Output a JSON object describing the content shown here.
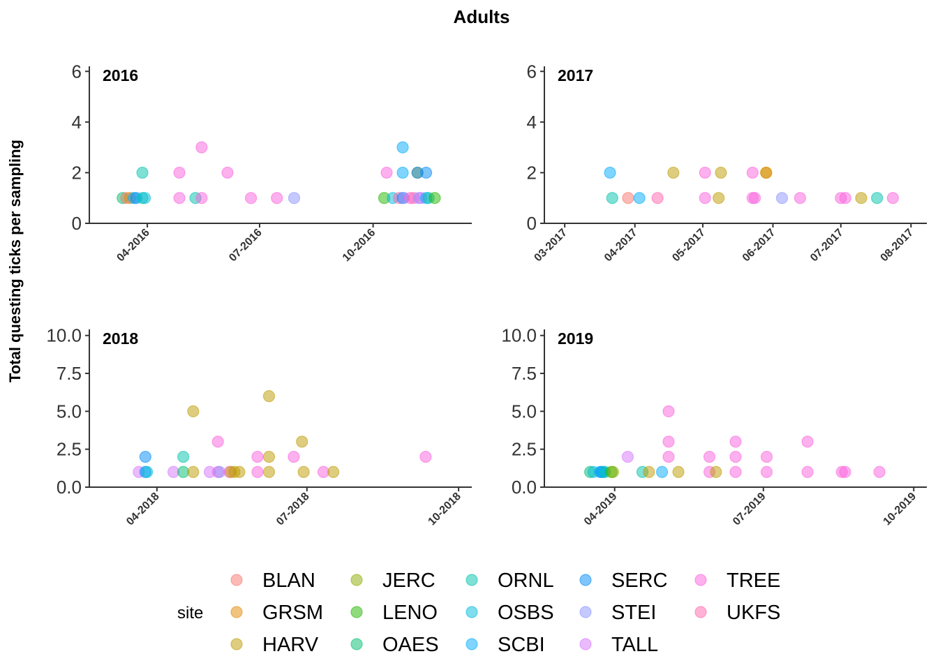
{
  "chart_data": {
    "type": "scatter",
    "title": "Adults",
    "ylabel": "Total questing ticks per sampling",
    "xlabel": "",
    "legend": {
      "title": "site",
      "position": "bottom",
      "entries": [
        {
          "name": "BLAN",
          "color": "#F8766D"
        },
        {
          "name": "GRSM",
          "color": "#E18A00"
        },
        {
          "name": "HARV",
          "color": "#BE9C00"
        },
        {
          "name": "JERC",
          "color": "#8CAB00"
        },
        {
          "name": "LENO",
          "color": "#24B700"
        },
        {
          "name": "OAES",
          "color": "#00BE70"
        },
        {
          "name": "ORNL",
          "color": "#00C1AB"
        },
        {
          "name": "OSBS",
          "color": "#00BBDA"
        },
        {
          "name": "SCBI",
          "color": "#00ACFC"
        },
        {
          "name": "SERC",
          "color": "#008CF9"
        },
        {
          "name": "STEI",
          "color": "#8B93FF"
        },
        {
          "name": "TALL",
          "color": "#D575FE"
        },
        {
          "name": "TREE",
          "color": "#F962DD"
        },
        {
          "name": "UKFS",
          "color": "#FF65AC"
        }
      ]
    },
    "panels": [
      {
        "label": "2016",
        "ylim": [
          0,
          6.2
        ],
        "yticks": [
          0,
          2,
          4,
          6
        ],
        "yticklabels": [
          "0",
          "2",
          "4",
          "6"
        ],
        "xlim": [
          "2016-02-14",
          "2016-12-20"
        ],
        "xticks": [
          "2016-04-01",
          "2016-07-01",
          "2016-10-01"
        ],
        "xticklabels": [
          "04-2016",
          "07-2016",
          "10-2016"
        ],
        "points": [
          {
            "x": "2016-03-12",
            "y": 1,
            "site": "OAES"
          },
          {
            "x": "2016-03-15",
            "y": 1,
            "site": "BLAN"
          },
          {
            "x": "2016-03-18",
            "y": 1,
            "site": "GRSM"
          },
          {
            "x": "2016-03-21",
            "y": 1,
            "site": "SCBI"
          },
          {
            "x": "2016-03-23",
            "y": 1,
            "site": "SERC"
          },
          {
            "x": "2016-03-28",
            "y": 2,
            "site": "ORNL"
          },
          {
            "x": "2016-03-28",
            "y": 1,
            "site": "ORNL"
          },
          {
            "x": "2016-03-30",
            "y": 1,
            "site": "OSBS"
          },
          {
            "x": "2016-04-27",
            "y": 2,
            "site": "TREE"
          },
          {
            "x": "2016-04-27",
            "y": 1,
            "site": "TREE"
          },
          {
            "x": "2016-05-10",
            "y": 1,
            "site": "ORNL"
          },
          {
            "x": "2016-05-15",
            "y": 3,
            "site": "TREE"
          },
          {
            "x": "2016-05-15",
            "y": 1,
            "site": "TREE"
          },
          {
            "x": "2016-06-05",
            "y": 2,
            "site": "TREE"
          },
          {
            "x": "2016-06-24",
            "y": 1,
            "site": "TREE"
          },
          {
            "x": "2016-07-15",
            "y": 1,
            "site": "TREE"
          },
          {
            "x": "2016-07-29",
            "y": 1,
            "site": "STEI"
          },
          {
            "x": "2016-10-10",
            "y": 1,
            "site": "LENO"
          },
          {
            "x": "2016-10-12",
            "y": 2,
            "site": "TREE"
          },
          {
            "x": "2016-10-17",
            "y": 1,
            "site": "OSBS"
          },
          {
            "x": "2016-10-22",
            "y": 1,
            "site": "UKFS"
          },
          {
            "x": "2016-10-25",
            "y": 3,
            "site": "SCBI"
          },
          {
            "x": "2016-10-25",
            "y": 2,
            "site": "SCBI"
          },
          {
            "x": "2016-10-25",
            "y": 1,
            "site": "SERC"
          },
          {
            "x": "2016-10-26",
            "y": 1,
            "site": "STEI"
          },
          {
            "x": "2016-10-31",
            "y": 1,
            "site": "TREE"
          },
          {
            "x": "2016-11-03",
            "y": 1,
            "site": "UKFS"
          },
          {
            "x": "2016-11-06",
            "y": 2,
            "site": "HARV"
          },
          {
            "x": "2016-11-06",
            "y": 2,
            "site": "SERC"
          },
          {
            "x": "2016-11-07",
            "y": 1,
            "site": "STEI"
          },
          {
            "x": "2016-11-09",
            "y": 1,
            "site": "TALL"
          },
          {
            "x": "2016-11-13",
            "y": 2,
            "site": "SERC"
          },
          {
            "x": "2016-11-13",
            "y": 1,
            "site": "SCBI"
          },
          {
            "x": "2016-11-15",
            "y": 1,
            "site": "ORNL"
          },
          {
            "x": "2016-11-20",
            "y": 1,
            "site": "LENO"
          }
        ]
      },
      {
        "label": "2017",
        "ylim": [
          0,
          6.2
        ],
        "yticks": [
          0,
          2,
          4,
          6
        ],
        "yticklabels": [
          "0",
          "2",
          "4",
          "6"
        ],
        "xlim": [
          "2017-02-20",
          "2017-08-08"
        ],
        "xticks": [
          "2017-03-01",
          "2017-04-01",
          "2017-05-01",
          "2017-06-01",
          "2017-07-01",
          "2017-08-01"
        ],
        "xticklabels": [
          "03-2017",
          "04-2017",
          "05-2017",
          "06-2017",
          "07-2017",
          "08-2017"
        ],
        "points": [
          {
            "x": "2017-03-21",
            "y": 2,
            "site": "SCBI"
          },
          {
            "x": "2017-03-22",
            "y": 1,
            "site": "ORNL"
          },
          {
            "x": "2017-03-29",
            "y": 1,
            "site": "BLAN"
          },
          {
            "x": "2017-04-03",
            "y": 1,
            "site": "SCBI"
          },
          {
            "x": "2017-04-11",
            "y": 1,
            "site": "UKFS"
          },
          {
            "x": "2017-04-18",
            "y": 2,
            "site": "HARV"
          },
          {
            "x": "2017-05-02",
            "y": 2,
            "site": "TREE"
          },
          {
            "x": "2017-05-02",
            "y": 1,
            "site": "TREE"
          },
          {
            "x": "2017-05-08",
            "y": 1,
            "site": "HARV"
          },
          {
            "x": "2017-05-09",
            "y": 2,
            "site": "HARV"
          },
          {
            "x": "2017-05-23",
            "y": 2,
            "site": "TREE"
          },
          {
            "x": "2017-05-23",
            "y": 1,
            "site": "TREE"
          },
          {
            "x": "2017-05-24",
            "y": 1,
            "site": "TREE"
          },
          {
            "x": "2017-05-29",
            "y": 2,
            "site": "HARV"
          },
          {
            "x": "2017-05-29",
            "y": 2,
            "site": "GRSM"
          },
          {
            "x": "2017-06-05",
            "y": 1,
            "site": "STEI"
          },
          {
            "x": "2017-06-13",
            "y": 1,
            "site": "TREE"
          },
          {
            "x": "2017-07-01",
            "y": 1,
            "site": "TREE"
          },
          {
            "x": "2017-07-03",
            "y": 1,
            "site": "TREE"
          },
          {
            "x": "2017-07-10",
            "y": 1,
            "site": "HARV"
          },
          {
            "x": "2017-07-17",
            "y": 1,
            "site": "ORNL"
          },
          {
            "x": "2017-07-24",
            "y": 1,
            "site": "TREE"
          }
        ]
      },
      {
        "label": "2018",
        "ylim": [
          0,
          10.4
        ],
        "yticks": [
          0,
          2.5,
          5,
          7.5,
          10
        ],
        "yticklabels": [
          "0.0",
          "2.5",
          "5.0",
          "7.5",
          "10.0"
        ],
        "xlim": [
          "2018-02-19",
          "2018-10-09"
        ],
        "xticks": [
          "2018-04-01",
          "2018-07-01",
          "2018-10-01"
        ],
        "xticklabels": [
          "04-2018",
          "07-2018",
          "10-2018"
        ],
        "points": [
          {
            "x": "2018-03-21",
            "y": 1,
            "site": "TALL"
          },
          {
            "x": "2018-03-25",
            "y": 2,
            "site": "SERC"
          },
          {
            "x": "2018-03-25",
            "y": 1,
            "site": "SERC"
          },
          {
            "x": "2018-03-26",
            "y": 1,
            "site": "OSBS"
          },
          {
            "x": "2018-04-11",
            "y": 1,
            "site": "TALL"
          },
          {
            "x": "2018-04-17",
            "y": 2,
            "site": "ORNL"
          },
          {
            "x": "2018-04-17",
            "y": 1,
            "site": "OAES"
          },
          {
            "x": "2018-04-23",
            "y": 5,
            "site": "HARV"
          },
          {
            "x": "2018-04-23",
            "y": 1,
            "site": "HARV"
          },
          {
            "x": "2018-05-03",
            "y": 1,
            "site": "TALL"
          },
          {
            "x": "2018-05-08",
            "y": 3,
            "site": "TREE"
          },
          {
            "x": "2018-05-08",
            "y": 1,
            "site": "TREE"
          },
          {
            "x": "2018-05-09",
            "y": 1,
            "site": "STEI"
          },
          {
            "x": "2018-05-15",
            "y": 1,
            "site": "TREE"
          },
          {
            "x": "2018-05-16",
            "y": 1,
            "site": "HARV"
          },
          {
            "x": "2018-05-18",
            "y": 1,
            "site": "HARV"
          },
          {
            "x": "2018-05-21",
            "y": 1,
            "site": "HARV"
          },
          {
            "x": "2018-06-01",
            "y": 2,
            "site": "TREE"
          },
          {
            "x": "2018-06-01",
            "y": 1,
            "site": "TREE"
          },
          {
            "x": "2018-06-08",
            "y": 6,
            "site": "HARV"
          },
          {
            "x": "2018-06-08",
            "y": 2,
            "site": "HARV"
          },
          {
            "x": "2018-06-08",
            "y": 1,
            "site": "HARV"
          },
          {
            "x": "2018-06-23",
            "y": 2,
            "site": "TREE"
          },
          {
            "x": "2018-06-28",
            "y": 3,
            "site": "HARV"
          },
          {
            "x": "2018-06-29",
            "y": 1,
            "site": "HARV"
          },
          {
            "x": "2018-07-11",
            "y": 1,
            "site": "TREE"
          },
          {
            "x": "2018-07-17",
            "y": 1,
            "site": "HARV"
          },
          {
            "x": "2018-09-11",
            "y": 2,
            "site": "TREE"
          }
        ]
      },
      {
        "label": "2019",
        "ylim": [
          0,
          10.4
        ],
        "yticks": [
          0,
          2.5,
          5,
          7.5,
          10
        ],
        "yticklabels": [
          "0.0",
          "2.5",
          "5.0",
          "7.5",
          "10.0"
        ],
        "xlim": [
          "2019-02-17",
          "2019-10-09"
        ],
        "xticks": [
          "2019-04-01",
          "2019-07-01",
          "2019-10-01"
        ],
        "xticklabels": [
          "04-2019",
          "07-2019",
          "10-2019"
        ],
        "points": [
          {
            "x": "2019-03-17",
            "y": 1,
            "site": "OAES"
          },
          {
            "x": "2019-03-19",
            "y": 1,
            "site": "OSBS"
          },
          {
            "x": "2019-03-23",
            "y": 1,
            "site": "SCBI"
          },
          {
            "x": "2019-03-24",
            "y": 1,
            "site": "SERC"
          },
          {
            "x": "2019-03-25",
            "y": 1,
            "site": "SCBI"
          },
          {
            "x": "2019-03-26",
            "y": 1,
            "site": "ORNL"
          },
          {
            "x": "2019-03-30",
            "y": 1,
            "site": "LENO"
          },
          {
            "x": "2019-03-31",
            "y": 1,
            "site": "JERC"
          },
          {
            "x": "2019-04-09",
            "y": 2,
            "site": "TALL"
          },
          {
            "x": "2019-04-18",
            "y": 1,
            "site": "ORNL"
          },
          {
            "x": "2019-04-22",
            "y": 1,
            "site": "HARV"
          },
          {
            "x": "2019-04-30",
            "y": 1,
            "site": "SCBI"
          },
          {
            "x": "2019-05-10",
            "y": 1,
            "site": "HARV"
          },
          {
            "x": "2019-05-04",
            "y": 5,
            "site": "TREE"
          },
          {
            "x": "2019-05-04",
            "y": 3,
            "site": "TREE"
          },
          {
            "x": "2019-05-04",
            "y": 2,
            "site": "TREE"
          },
          {
            "x": "2019-05-29",
            "y": 2,
            "site": "TREE"
          },
          {
            "x": "2019-05-29",
            "y": 1,
            "site": "TREE"
          },
          {
            "x": "2019-06-02",
            "y": 1,
            "site": "HARV"
          },
          {
            "x": "2019-06-14",
            "y": 3,
            "site": "TREE"
          },
          {
            "x": "2019-06-14",
            "y": 2,
            "site": "TREE"
          },
          {
            "x": "2019-06-14",
            "y": 1,
            "site": "TREE"
          },
          {
            "x": "2019-07-03",
            "y": 2,
            "site": "TREE"
          },
          {
            "x": "2019-07-03",
            "y": 1,
            "site": "TREE"
          },
          {
            "x": "2019-07-28",
            "y": 3,
            "site": "TREE"
          },
          {
            "x": "2019-07-28",
            "y": 1,
            "site": "TREE"
          },
          {
            "x": "2019-08-18",
            "y": 1,
            "site": "TREE"
          },
          {
            "x": "2019-08-20",
            "y": 1,
            "site": "TREE"
          },
          {
            "x": "2019-09-10",
            "y": 1,
            "site": "TREE"
          }
        ]
      }
    ]
  }
}
